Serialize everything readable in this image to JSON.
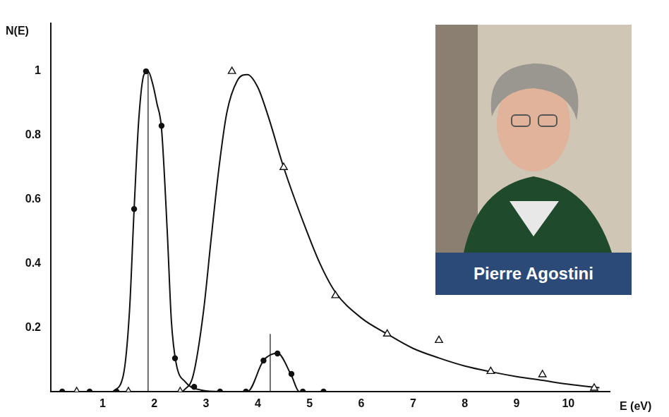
{
  "chart_data": {
    "type": "scatter",
    "y_label": "N(E)",
    "x_label": "E (eV)",
    "xlim": [
      0,
      10.8
    ],
    "xticks": [
      1,
      2,
      3,
      4,
      5,
      6,
      7,
      8,
      9,
      10
    ],
    "ylim": [
      0,
      1.15
    ],
    "yticks": [
      0.2,
      0.4,
      0.6,
      0.8,
      1
    ],
    "grid": false,
    "series": [
      {
        "color": "#111111",
        "marker": "none",
        "line_style": "solid",
        "x": [
          1.2,
          1.4,
          1.52,
          1.61,
          1.7,
          1.8,
          1.88,
          1.97,
          2.05,
          2.14,
          2.25,
          2.33,
          2.42,
          2.6,
          2.9,
          3.3,
          3.8,
          4.11,
          4.38,
          4.65,
          4.8,
          4.95
        ],
        "values": [
          0,
          0.05,
          0.25,
          0.57,
          0.85,
          0.99,
          1.0,
          0.96,
          0.9,
          0.82,
          0.5,
          0.22,
          0.09,
          0.03,
          0.005,
          0,
          0,
          0.097,
          0.12,
          0.05,
          0,
          0
        ]
      },
      {
        "color": "#111111",
        "marker": "none",
        "line_style": "solid",
        "x": [
          2.55,
          2.75,
          2.95,
          3.1,
          3.25,
          3.4,
          3.6,
          3.8,
          4.0,
          4.2,
          4.5,
          4.9,
          5.2,
          5.5,
          6.0,
          6.5,
          7.0,
          7.5,
          8.0,
          8.5,
          9.0,
          9.5,
          10.0,
          10.6
        ],
        "values": [
          0,
          0.05,
          0.25,
          0.48,
          0.7,
          0.87,
          0.97,
          0.99,
          0.95,
          0.86,
          0.7,
          0.52,
          0.4,
          0.31,
          0.23,
          0.18,
          0.135,
          0.105,
          0.08,
          0.062,
          0.047,
          0.035,
          0.023,
          0.012
        ]
      },
      {
        "color": "#111111",
        "marker": "circle",
        "line_style": "none",
        "x": [
          0.22,
          0.75,
          1.27,
          1.61,
          1.84,
          2.14,
          2.4,
          2.77,
          3.27,
          3.77,
          4.11,
          4.38,
          4.65,
          4.87,
          5.27
        ],
        "values": [
          0,
          0,
          0,
          0.57,
          1.0,
          0.83,
          0.104,
          0.015,
          0,
          0,
          0.097,
          0.119,
          0.055,
          0,
          0
        ]
      },
      {
        "color": "#111111",
        "marker": "triangle",
        "line_style": "none",
        "x": [
          0.5,
          1.5,
          2.5,
          3.5,
          4.5,
          5.5,
          6.5,
          7.5,
          8.5,
          9.5,
          10.5
        ],
        "values": [
          0,
          0,
          0,
          1.0,
          0.7,
          0.3,
          0.18,
          0.16,
          0.063,
          0.053,
          0.011
        ]
      }
    ],
    "vertical_lines": [
      {
        "x": 1.88,
        "y": 1.0
      },
      {
        "x": 4.24,
        "y": 0.18
      }
    ],
    "inset": {
      "caption": "Pierre Agostini"
    }
  }
}
